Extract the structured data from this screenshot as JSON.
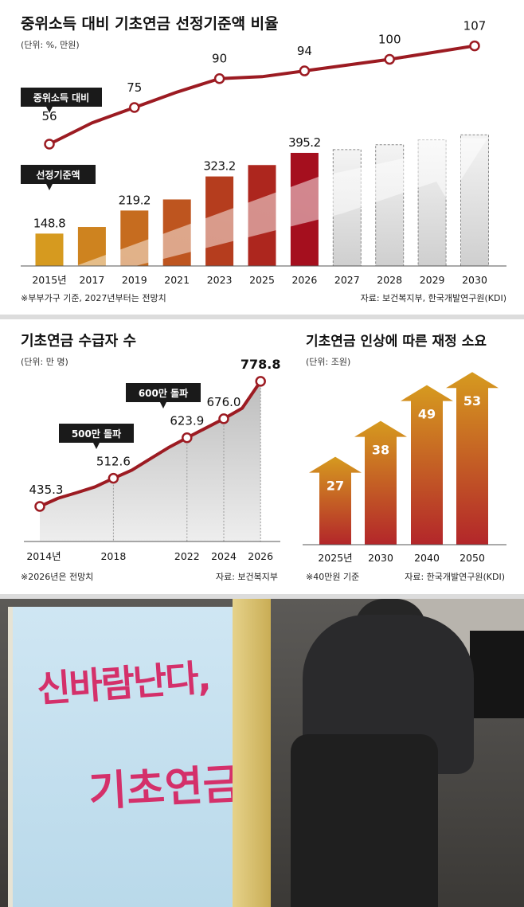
{
  "chart_data": [
    {
      "type": "bar",
      "title": "중위소득 대비 기초연금 선정기준액 비율",
      "subtitle": "(단위: %, 만원)",
      "categories": [
        "2015년",
        "2017",
        "2019",
        "2021",
        "2023",
        "2025",
        "2026",
        "2027",
        "2028",
        "2029",
        "2030"
      ],
      "series": [
        {
          "name": "선정기준액",
          "values": [
            148.8,
            169,
            219.2,
            253,
            323.2,
            358,
            395.2,
            405,
            420,
            435,
            450
          ]
        },
        {
          "name": "중위소득 대비",
          "values": [
            56,
            67,
            75,
            83,
            90,
            91,
            94,
            null,
            100,
            null,
            107
          ]
        }
      ],
      "bar_labels": [
        {
          "index": 0,
          "text": "148.8"
        },
        {
          "index": 2,
          "text": "219.2"
        },
        {
          "index": 4,
          "text": "323.2"
        },
        {
          "index": 6,
          "text": "395.2"
        }
      ],
      "line_labels": [
        {
          "index": 0,
          "text": "56"
        },
        {
          "index": 2,
          "text": "75"
        },
        {
          "index": 4,
          "text": "90"
        },
        {
          "index": 6,
          "text": "94"
        },
        {
          "index": 8,
          "text": "100"
        },
        {
          "index": 10,
          "text": "107"
        }
      ],
      "projected_from_index": 7,
      "tag_line": "중위소득 대비",
      "tag_bar": "선정기준액",
      "note": "※부부가구 기준, 2027년부터는 전망치",
      "source": "자료: 보건복지부, 한국개발연구원(KDI)",
      "colors": {
        "line": "#9c1b22",
        "bar_start": "#d69a1f",
        "bar_end": "#a50f1e",
        "projected": "#dedede"
      }
    },
    {
      "type": "area",
      "title": "기초연금 수급자 수",
      "subtitle": "(단위: 만 명)",
      "x": [
        2014,
        2015,
        2016,
        2017,
        2018,
        2019,
        2020,
        2021,
        2022,
        2023,
        2024,
        2025,
        2026
      ],
      "x_ticks": [
        "2014년",
        "2018",
        "2022",
        "2024",
        "2026"
      ],
      "x_tick_values": [
        2014,
        2018,
        2022,
        2024,
        2026
      ],
      "series": [
        {
          "values": [
            435.3,
            458,
            473,
            489,
            512.6,
            535,
            566,
            597,
            623.9,
            650,
            676.0,
            705,
            778.8
          ]
        }
      ],
      "point_labels": [
        {
          "x": 2014,
          "text": "435.3"
        },
        {
          "x": 2018,
          "text": "512.6"
        },
        {
          "x": 2022,
          "text": "623.9"
        },
        {
          "x": 2024,
          "text": "676.0"
        },
        {
          "x": 2026,
          "text": "778.8"
        }
      ],
      "tags": [
        "500만 돌파",
        "600만 돌파"
      ],
      "note": "※2026년은 전망치",
      "source": "자료: 보건복지부",
      "colors": {
        "line": "#9c1b22",
        "area": "#d4d4d4",
        "tag": "#1a1a1a"
      }
    },
    {
      "type": "bar",
      "title": "기초연금 인상에 따른 재정 소요",
      "subtitle": "(단위: 조원)",
      "categories": [
        "2025년",
        "2030",
        "2040",
        "2050"
      ],
      "values": [
        27,
        38,
        49,
        53
      ],
      "note": "※40만원 기준",
      "source": "자료: 한국개발연구원(KDI)",
      "colors": {
        "top": "#d69a1f",
        "bottom": "#b3262a"
      }
    }
  ]
}
